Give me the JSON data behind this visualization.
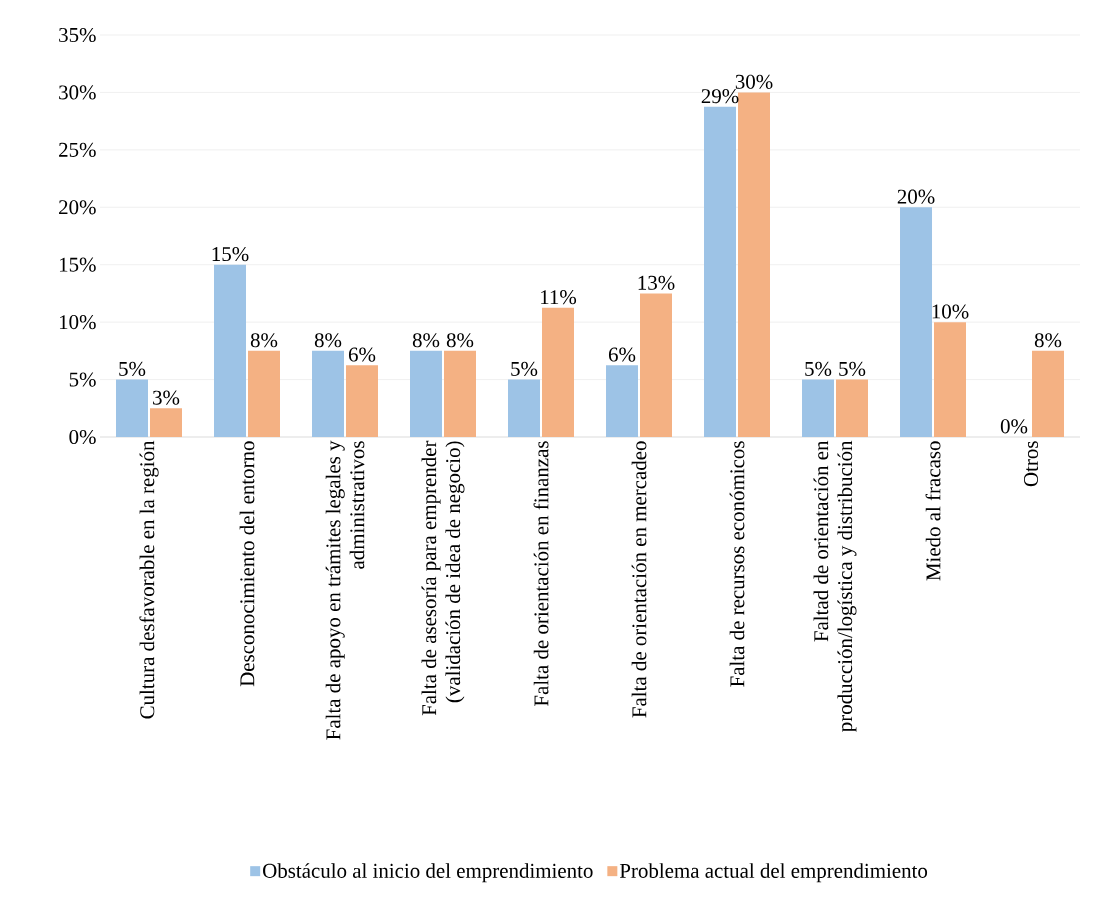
{
  "chart_data": {
    "type": "bar",
    "categories": [
      "Cultura desfavorable en la región",
      "Desconocimiento del entorno",
      "Falta de apoyo en trámites legales y administrativos",
      "Falta de asesoría para emprender (validación de idea de negocio)",
      "Falta de orientación en finanzas",
      "Falta de orientación en mercadeo",
      "Falta de recursos económicos",
      "Faltad de orientación en producción/logística y distribución",
      "Miedo al fracaso",
      "Otros"
    ],
    "series": [
      {
        "name": "Obstáculo al inicio del emprendimiento",
        "color": "#9dc3e6",
        "values": [
          5,
          15,
          7.5,
          7.5,
          5,
          6.25,
          28.75,
          5,
          20,
          0
        ],
        "value_labels": [
          "5%",
          "15%",
          "8%",
          "8%",
          "5%",
          "6%",
          "29%",
          "5%",
          "20%",
          "0%"
        ]
      },
      {
        "name": "Problema actual del emprendimiento",
        "color": "#f4b183",
        "values": [
          2.5,
          7.5,
          6.25,
          7.5,
          11.25,
          12.5,
          30,
          5,
          10,
          7.5
        ],
        "value_labels": [
          "3%",
          "8%",
          "6%",
          "8%",
          "11%",
          "13%",
          "30%",
          "5%",
          "10%",
          "8%"
        ]
      }
    ],
    "ylim": [
      0,
      35
    ],
    "yticks": [
      {
        "value": 0,
        "label": "0%"
      },
      {
        "value": 5,
        "label": "5%"
      },
      {
        "value": 10,
        "label": "10%"
      },
      {
        "value": 15,
        "label": "15%"
      },
      {
        "value": 20,
        "label": "20%"
      },
      {
        "value": 25,
        "label": "25%"
      },
      {
        "value": 30,
        "label": "30%"
      },
      {
        "value": 35,
        "label": "35%"
      }
    ],
    "grid": "y",
    "legend": "bottom"
  }
}
